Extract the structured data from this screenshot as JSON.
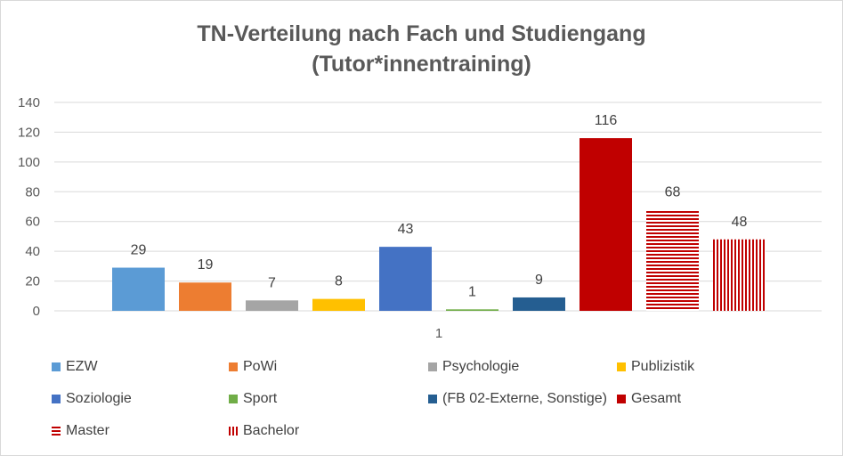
{
  "chart_data": {
    "type": "bar",
    "title": [
      "TN-Verteilung nach Fach und Studiengang",
      "(Tutor*innentraining)"
    ],
    "categories": [
      "1"
    ],
    "ylim": [
      0,
      140
    ],
    "yticks": [
      0,
      20,
      40,
      60,
      80,
      100,
      120,
      140
    ],
    "grid": true,
    "legend_position": "bottom",
    "series": [
      {
        "name": "EZW",
        "values": [
          29
        ],
        "color": "#5b9bd5",
        "pattern": "solid"
      },
      {
        "name": "PoWi",
        "values": [
          19
        ],
        "color": "#ed7d31",
        "pattern": "solid"
      },
      {
        "name": "Psychologie",
        "values": [
          7
        ],
        "color": "#a5a5a5",
        "pattern": "solid"
      },
      {
        "name": "Publizistik",
        "values": [
          8
        ],
        "color": "#ffc000",
        "pattern": "solid"
      },
      {
        "name": "Soziologie",
        "values": [
          43
        ],
        "color": "#4472c4",
        "pattern": "solid"
      },
      {
        "name": "Sport",
        "values": [
          1
        ],
        "color": "#70ad47",
        "pattern": "solid"
      },
      {
        "name": "(FB 02-Externe, Sonstige)",
        "values": [
          9
        ],
        "color": "#255e91",
        "pattern": "solid"
      },
      {
        "name": "Gesamt",
        "values": [
          116
        ],
        "color": "#c00000",
        "pattern": "solid"
      },
      {
        "name": "Master",
        "values": [
          68
        ],
        "color": "#c00000",
        "pattern": "horizontal-stripes"
      },
      {
        "name": "Bachelor",
        "values": [
          48
        ],
        "color": "#c00000",
        "pattern": "vertical-stripes"
      }
    ]
  }
}
